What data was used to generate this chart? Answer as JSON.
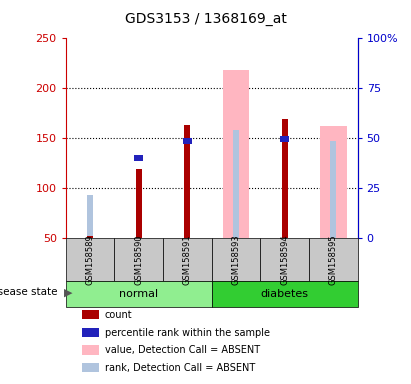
{
  "title": "GDS3153 / 1368169_at",
  "samples": [
    "GSM158589",
    "GSM158590",
    "GSM158591",
    "GSM158593",
    "GSM158594",
    "GSM158595"
  ],
  "ylim_left": [
    50,
    250
  ],
  "ylim_right": [
    0,
    100
  ],
  "yticks_left": [
    50,
    100,
    150,
    200,
    250
  ],
  "yticks_right": [
    0,
    25,
    50,
    75,
    100
  ],
  "ytick_labels_left": [
    "50",
    "100",
    "150",
    "200",
    "250"
  ],
  "ytick_labels_right": [
    "0",
    "25",
    "50",
    "75",
    "100%"
  ],
  "count_values": [
    52,
    119,
    163,
    null,
    169,
    null
  ],
  "percentile_values": [
    null,
    130,
    147,
    null,
    149,
    null
  ],
  "absent_value_values": [
    null,
    null,
    null,
    218,
    null,
    162
  ],
  "absent_rank_values": [
    93,
    null,
    null,
    158,
    null,
    147
  ],
  "count_color": "#aa0000",
  "percentile_color": "#2222bb",
  "absent_value_color": "#ffb6c1",
  "absent_rank_color": "#b0c4de",
  "left_color": "#cc0000",
  "right_color": "#0000cc",
  "normal_color": "#90ee90",
  "diabetes_color": "#32cd32",
  "sample_box_color": "#c8c8c8"
}
